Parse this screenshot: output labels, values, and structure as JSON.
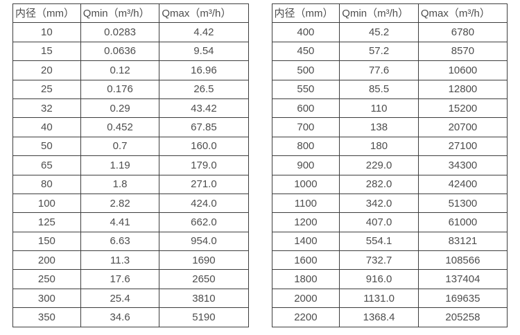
{
  "tables": [
    {
      "name": "flow-range-small-diameters",
      "headers": [
        "内径（mm）",
        "Qmin（m³/h）",
        "Qmax（m³/h）"
      ],
      "rows": [
        [
          "10",
          "0.0283",
          "4.42"
        ],
        [
          "15",
          "0.0636",
          "9.54"
        ],
        [
          "20",
          "0.12",
          "16.96"
        ],
        [
          "25",
          "0.176",
          "26.5"
        ],
        [
          "32",
          "0.29",
          "43.42"
        ],
        [
          "40",
          "0.452",
          "67.85"
        ],
        [
          "50",
          "0.7",
          "160.0"
        ],
        [
          "65",
          "1.19",
          "179.0"
        ],
        [
          "80",
          "1.8",
          "271.0"
        ],
        [
          "100",
          "2.82",
          "424.0"
        ],
        [
          "125",
          "4.41",
          "662.0"
        ],
        [
          "150",
          "6.63",
          "954.0"
        ],
        [
          "200",
          "11.3",
          "1690"
        ],
        [
          "250",
          "17.6",
          "2650"
        ],
        [
          "300",
          "25.4",
          "3810"
        ],
        [
          "350",
          "34.6",
          "5190"
        ]
      ]
    },
    {
      "name": "flow-range-large-diameters",
      "headers": [
        "内径（mm）",
        "Qmin（m³/h）",
        "Qmax（m³/h）"
      ],
      "rows": [
        [
          "400",
          "45.2",
          "6780"
        ],
        [
          "450",
          "57.2",
          "8570"
        ],
        [
          "500",
          "77.6",
          "10600"
        ],
        [
          "550",
          "85.5",
          "12800"
        ],
        [
          "600",
          "110",
          "15200"
        ],
        [
          "700",
          "138",
          "20700"
        ],
        [
          "800",
          "180",
          "27100"
        ],
        [
          "900",
          "229.0",
          "34300"
        ],
        [
          "1000",
          "282.0",
          "42400"
        ],
        [
          "1100",
          "342.0",
          "51300"
        ],
        [
          "1200",
          "407.0",
          "61000"
        ],
        [
          "1400",
          "554.1",
          "83121"
        ],
        [
          "1600",
          "732.7",
          "108566"
        ],
        [
          "1800",
          "916.0",
          "137404"
        ],
        [
          "2000",
          "1131.0",
          "169635"
        ],
        [
          "2200",
          "1368.4",
          "205258"
        ]
      ]
    }
  ],
  "colors": {
    "text": "#4d4d4d",
    "border": "#3d3d3d",
    "background": "#ffffff"
  }
}
